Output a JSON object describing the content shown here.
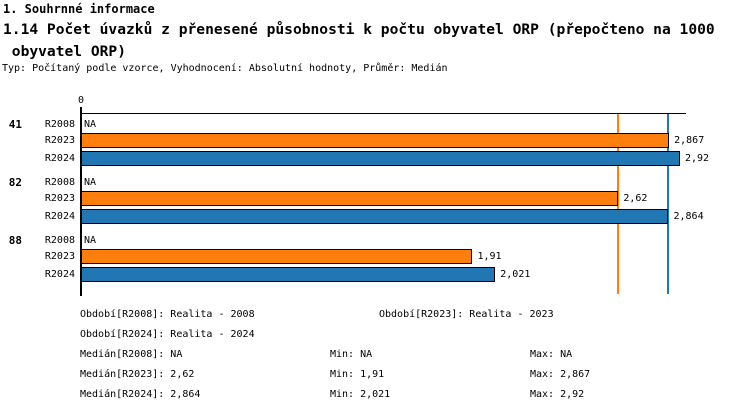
{
  "header": {
    "section_title": "1. Souhrnné informace",
    "indicator_title": "1.14 Počet úvazků z přenesené působnosti k počtu obyvatel ORP (přepočteno na 1000\n obyvatel ORP)",
    "meta": "Typ: Počítaný podle vzorce, Vyhodnocení: Absolutní hodnoty, Průměr: Medián"
  },
  "chart_data": {
    "type": "bar",
    "orientation": "horizontal",
    "title": "1.14 Počet úvazků z přenesené působnosti k počtu obyvatel ORP (přepočteno na 1000 obyvatel ORP)",
    "categories": [
      "41",
      "82",
      "88"
    ],
    "series": [
      {
        "name": "R2008",
        "color": null,
        "values": [
          null,
          null,
          null
        ],
        "displays": [
          "NA",
          "NA",
          "NA"
        ]
      },
      {
        "name": "R2023",
        "color": "#ff7f0e",
        "values": [
          2.867,
          2.62,
          1.91
        ],
        "displays": [
          "2,867",
          "2,62",
          "1,91"
        ]
      },
      {
        "name": "R2024",
        "color": "#2077b4",
        "values": [
          2.92,
          2.864,
          2.021
        ],
        "displays": [
          "2,92",
          "2,864",
          "2,021"
        ]
      }
    ],
    "axis": {
      "zero_label": "0",
      "xmin": 0,
      "xmax": 2.95
    },
    "median_lines": [
      {
        "series": "R2023",
        "value": 2.62,
        "color": "#ff7f0e"
      },
      {
        "series": "R2024",
        "value": 2.864,
        "color": "#2077b4"
      }
    ],
    "value_decimal_separator": ","
  },
  "legend": {
    "rows": [
      {
        "c1": "Období[R2008]: Realita - 2008",
        "c2": "Období[R2023]: Realita - 2023"
      },
      {
        "c1": "Období[R2024]: Realita - 2024"
      },
      {
        "c1": "Medián[R2008]: NA",
        "min": "Min: NA",
        "max": "Max: NA"
      },
      {
        "c1": "Medián[R2023]: 2,62",
        "min": "Min: 1,91",
        "max": "Max: 2,867"
      },
      {
        "c1": "Medián[R2024]: 2,864",
        "min": "Min: 2,021",
        "max": "Max: 2,92"
      }
    ]
  }
}
